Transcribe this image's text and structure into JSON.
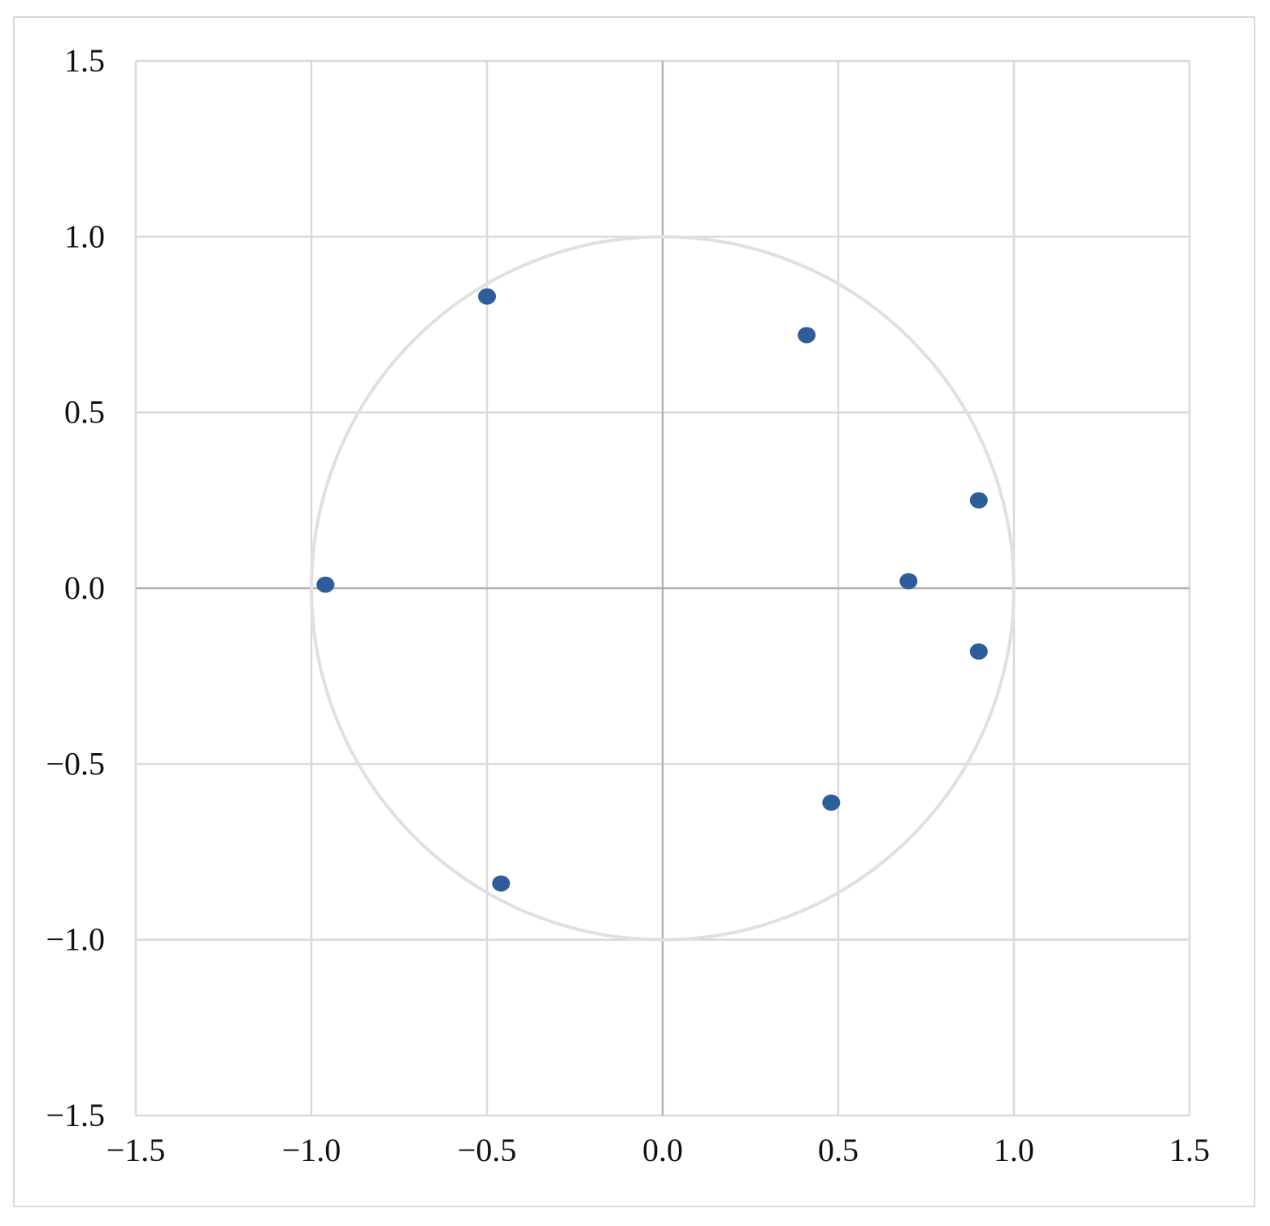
{
  "chart_data": {
    "type": "scatter",
    "xlim": [
      -1.5,
      1.5
    ],
    "ylim": [
      -1.5,
      1.5
    ],
    "x_ticks": [
      -1.5,
      -1.0,
      -0.5,
      0.0,
      0.5,
      1.0,
      1.5
    ],
    "y_ticks": [
      -1.5,
      -1.0,
      -0.5,
      0.0,
      0.5,
      1.0,
      1.5
    ],
    "x_tick_labels": [
      "−1.5",
      "−1.0",
      "−0.5",
      "0.0",
      "0.5",
      "1.0",
      "1.5"
    ],
    "y_tick_labels": [
      "−1.5",
      "−1.0",
      "−0.5",
      "0.0",
      "0.5",
      "1.0",
      "1.5"
    ],
    "grid": true,
    "reference_circle": {
      "center": [
        0,
        0
      ],
      "radius": 1.0,
      "color": "#e0e0e0"
    },
    "points": [
      {
        "x": -0.5,
        "y": 0.83
      },
      {
        "x": 0.41,
        "y": 0.72
      },
      {
        "x": 0.9,
        "y": 0.25
      },
      {
        "x": -0.96,
        "y": 0.01
      },
      {
        "x": 0.7,
        "y": 0.02
      },
      {
        "x": 0.9,
        "y": -0.18
      },
      {
        "x": 0.48,
        "y": -0.61
      },
      {
        "x": -0.46,
        "y": -0.84
      }
    ],
    "marker_color": "#2e5d9b",
    "grid_color": "#d9d9d9",
    "axis_color": "#b0b0b0"
  }
}
